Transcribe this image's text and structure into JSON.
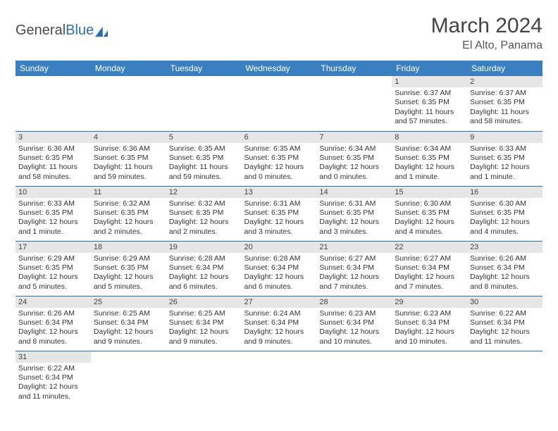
{
  "brand": {
    "general": "General",
    "blue": "Blue"
  },
  "title": "March 2024",
  "location": "El Alto, Panama",
  "styling": {
    "header_bg": "#3a80c0",
    "header_text": "#ffffff",
    "daynum_bg": "#e6e6e6",
    "border_color": "#2f6fa8",
    "page_bg": "#ffffff",
    "text_color": "#333333",
    "title_fontsize": 30,
    "location_fontsize": 16,
    "dayheader_fontsize": 12,
    "cell_fontsize": 10.5
  },
  "day_headers": [
    "Sunday",
    "Monday",
    "Tuesday",
    "Wednesday",
    "Thursday",
    "Friday",
    "Saturday"
  ],
  "weeks": [
    [
      null,
      null,
      null,
      null,
      null,
      {
        "n": "1",
        "sunrise": "Sunrise: 6:37 AM",
        "sunset": "Sunset: 6:35 PM",
        "daylight": "Daylight: 11 hours and 57 minutes."
      },
      {
        "n": "2",
        "sunrise": "Sunrise: 6:37 AM",
        "sunset": "Sunset: 6:35 PM",
        "daylight": "Daylight: 11 hours and 58 minutes."
      }
    ],
    [
      {
        "n": "3",
        "sunrise": "Sunrise: 6:36 AM",
        "sunset": "Sunset: 6:35 PM",
        "daylight": "Daylight: 11 hours and 58 minutes."
      },
      {
        "n": "4",
        "sunrise": "Sunrise: 6:36 AM",
        "sunset": "Sunset: 6:35 PM",
        "daylight": "Daylight: 11 hours and 59 minutes."
      },
      {
        "n": "5",
        "sunrise": "Sunrise: 6:35 AM",
        "sunset": "Sunset: 6:35 PM",
        "daylight": "Daylight: 11 hours and 59 minutes."
      },
      {
        "n": "6",
        "sunrise": "Sunrise: 6:35 AM",
        "sunset": "Sunset: 6:35 PM",
        "daylight": "Daylight: 12 hours and 0 minutes."
      },
      {
        "n": "7",
        "sunrise": "Sunrise: 6:34 AM",
        "sunset": "Sunset: 6:35 PM",
        "daylight": "Daylight: 12 hours and 0 minutes."
      },
      {
        "n": "8",
        "sunrise": "Sunrise: 6:34 AM",
        "sunset": "Sunset: 6:35 PM",
        "daylight": "Daylight: 12 hours and 1 minute."
      },
      {
        "n": "9",
        "sunrise": "Sunrise: 6:33 AM",
        "sunset": "Sunset: 6:35 PM",
        "daylight": "Daylight: 12 hours and 1 minute."
      }
    ],
    [
      {
        "n": "10",
        "sunrise": "Sunrise: 6:33 AM",
        "sunset": "Sunset: 6:35 PM",
        "daylight": "Daylight: 12 hours and 1 minute."
      },
      {
        "n": "11",
        "sunrise": "Sunrise: 6:32 AM",
        "sunset": "Sunset: 6:35 PM",
        "daylight": "Daylight: 12 hours and 2 minutes."
      },
      {
        "n": "12",
        "sunrise": "Sunrise: 6:32 AM",
        "sunset": "Sunset: 6:35 PM",
        "daylight": "Daylight: 12 hours and 2 minutes."
      },
      {
        "n": "13",
        "sunrise": "Sunrise: 6:31 AM",
        "sunset": "Sunset: 6:35 PM",
        "daylight": "Daylight: 12 hours and 3 minutes."
      },
      {
        "n": "14",
        "sunrise": "Sunrise: 6:31 AM",
        "sunset": "Sunset: 6:35 PM",
        "daylight": "Daylight: 12 hours and 3 minutes."
      },
      {
        "n": "15",
        "sunrise": "Sunrise: 6:30 AM",
        "sunset": "Sunset: 6:35 PM",
        "daylight": "Daylight: 12 hours and 4 minutes."
      },
      {
        "n": "16",
        "sunrise": "Sunrise: 6:30 AM",
        "sunset": "Sunset: 6:35 PM",
        "daylight": "Daylight: 12 hours and 4 minutes."
      }
    ],
    [
      {
        "n": "17",
        "sunrise": "Sunrise: 6:29 AM",
        "sunset": "Sunset: 6:35 PM",
        "daylight": "Daylight: 12 hours and 5 minutes."
      },
      {
        "n": "18",
        "sunrise": "Sunrise: 6:29 AM",
        "sunset": "Sunset: 6:35 PM",
        "daylight": "Daylight: 12 hours and 5 minutes."
      },
      {
        "n": "19",
        "sunrise": "Sunrise: 6:28 AM",
        "sunset": "Sunset: 6:34 PM",
        "daylight": "Daylight: 12 hours and 6 minutes."
      },
      {
        "n": "20",
        "sunrise": "Sunrise: 6:28 AM",
        "sunset": "Sunset: 6:34 PM",
        "daylight": "Daylight: 12 hours and 6 minutes."
      },
      {
        "n": "21",
        "sunrise": "Sunrise: 6:27 AM",
        "sunset": "Sunset: 6:34 PM",
        "daylight": "Daylight: 12 hours and 7 minutes."
      },
      {
        "n": "22",
        "sunrise": "Sunrise: 6:27 AM",
        "sunset": "Sunset: 6:34 PM",
        "daylight": "Daylight: 12 hours and 7 minutes."
      },
      {
        "n": "23",
        "sunrise": "Sunrise: 6:26 AM",
        "sunset": "Sunset: 6:34 PM",
        "daylight": "Daylight: 12 hours and 8 minutes."
      }
    ],
    [
      {
        "n": "24",
        "sunrise": "Sunrise: 6:26 AM",
        "sunset": "Sunset: 6:34 PM",
        "daylight": "Daylight: 12 hours and 8 minutes."
      },
      {
        "n": "25",
        "sunrise": "Sunrise: 6:25 AM",
        "sunset": "Sunset: 6:34 PM",
        "daylight": "Daylight: 12 hours and 9 minutes."
      },
      {
        "n": "26",
        "sunrise": "Sunrise: 6:25 AM",
        "sunset": "Sunset: 6:34 PM",
        "daylight": "Daylight: 12 hours and 9 minutes."
      },
      {
        "n": "27",
        "sunrise": "Sunrise: 6:24 AM",
        "sunset": "Sunset: 6:34 PM",
        "daylight": "Daylight: 12 hours and 9 minutes."
      },
      {
        "n": "28",
        "sunrise": "Sunrise: 6:23 AM",
        "sunset": "Sunset: 6:34 PM",
        "daylight": "Daylight: 12 hours and 10 minutes."
      },
      {
        "n": "29",
        "sunrise": "Sunrise: 6:23 AM",
        "sunset": "Sunset: 6:34 PM",
        "daylight": "Daylight: 12 hours and 10 minutes."
      },
      {
        "n": "30",
        "sunrise": "Sunrise: 6:22 AM",
        "sunset": "Sunset: 6:34 PM",
        "daylight": "Daylight: 12 hours and 11 minutes."
      }
    ],
    [
      {
        "n": "31",
        "sunrise": "Sunrise: 6:22 AM",
        "sunset": "Sunset: 6:34 PM",
        "daylight": "Daylight: 12 hours and 11 minutes."
      },
      null,
      null,
      null,
      null,
      null,
      null
    ]
  ]
}
